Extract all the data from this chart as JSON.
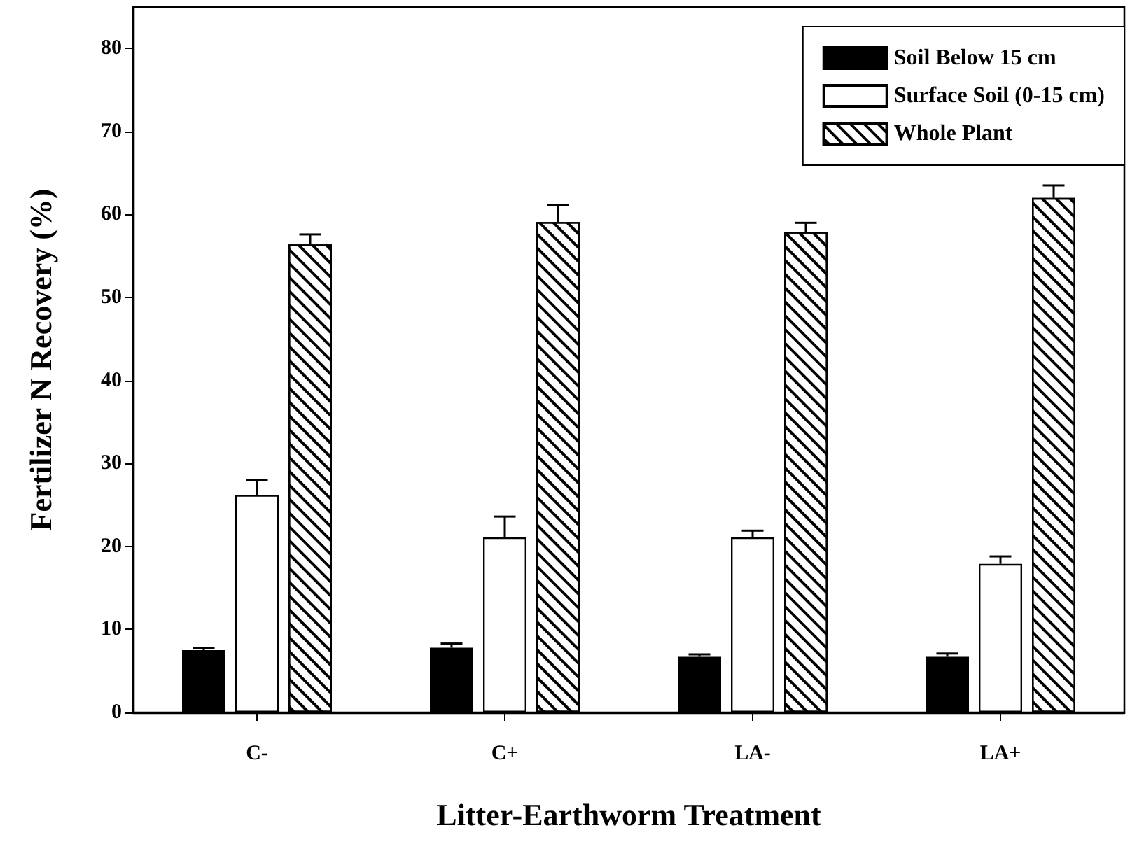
{
  "chart_data": {
    "type": "bar",
    "xlabel": "Litter-Earthworm Treatment",
    "ylabel": "Fertilizer N Recovery (%)",
    "categories": [
      "C-",
      "C+",
      "LA-",
      "LA+"
    ],
    "series": [
      {
        "name": "Soil Below 15 cm",
        "color": "#000000",
        "values": [
          7.5,
          7.8,
          6.7,
          6.7
        ],
        "errors": [
          [
            7.5,
            7.8
          ],
          [
            7.8,
            8.3
          ],
          [
            6.7,
            7.0
          ],
          [
            6.7,
            7.1
          ]
        ]
      },
      {
        "name": "Surface Soil (0-15 cm)",
        "color": "#ffffff",
        "values": [
          26.2,
          21.1,
          21.1,
          17.9
        ],
        "errors": [
          [
            26.2,
            28.0
          ],
          [
            21.1,
            23.6
          ],
          [
            21.1,
            21.9
          ],
          [
            17.9,
            18.8
          ]
        ]
      },
      {
        "name": "Whole Plant",
        "color": "#ffffff",
        "values": [
          56.4,
          59.1,
          57.9,
          62.0
        ],
        "errors": [
          [
            56.4,
            57.6
          ],
          [
            59.1,
            61.1
          ],
          [
            57.9,
            59.0
          ],
          [
            62.0,
            63.5
          ]
        ]
      }
    ],
    "ylim": [
      0,
      85
    ],
    "yticks": [
      0,
      10,
      20,
      30,
      40,
      50,
      60,
      70,
      80
    ],
    "grid": false,
    "legend": "top right"
  }
}
